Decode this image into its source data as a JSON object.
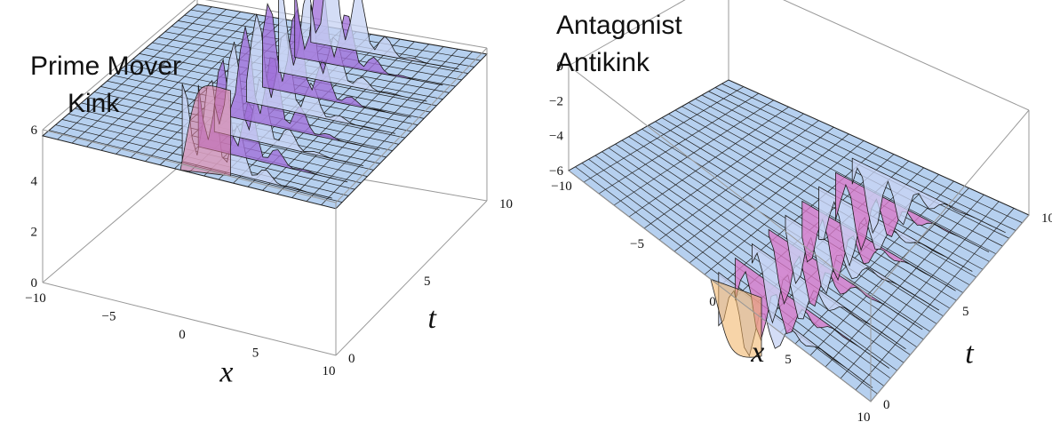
{
  "chart_data": [
    {
      "type": "surface3d",
      "title_lines": [
        "Prime Mover",
        "Kink"
      ],
      "xlabel": "x",
      "ylabel": "t",
      "zlabel": "",
      "xlim": [
        -10,
        10
      ],
      "ylim": [
        0,
        10
      ],
      "zlim": [
        0,
        6
      ],
      "x_ticks": [
        "-10",
        "-5",
        "0",
        "5",
        "10"
      ],
      "t_ticks": [
        "0",
        "5",
        "10"
      ],
      "z_ticks": [
        "0",
        "2",
        "4",
        "6"
      ],
      "surface": "kink rising from 0 to 2π near x=0 with oscillating wave fronts propagating in t",
      "colors": {
        "flat": "#b6d0ef",
        "wave": "#a070d8",
        "accent": "#e07a9a"
      }
    },
    {
      "type": "surface3d",
      "title_lines": [
        "Antagonist",
        "Antikink"
      ],
      "xlabel": "x",
      "ylabel": "t",
      "zlabel": "",
      "xlim": [
        -10,
        10
      ],
      "ylim": [
        0,
        10
      ],
      "zlim": [
        -6,
        0
      ],
      "x_ticks": [
        "-10",
        "-5",
        "0",
        "5",
        "10"
      ],
      "t_ticks": [
        "0",
        "5",
        "10"
      ],
      "z_ticks": [
        "0",
        "-2",
        "-4",
        "-6"
      ],
      "surface": "antikink falling from 0 to -2π near x=0 with oscillating wave fronts propagating in t",
      "colors": {
        "flat": "#b6d0ef",
        "wave": "#d878c8",
        "accent": "#f0b060"
      }
    }
  ]
}
